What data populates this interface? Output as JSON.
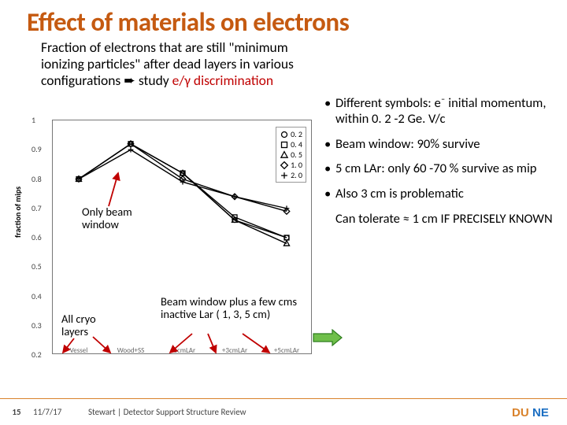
{
  "title_color": "#c55a11",
  "accent_color": "#c00000",
  "title": "Effect of materials on electrons",
  "subtitle_parts": {
    "a": "Fraction of electrons that are still \"minimum ionizing particles\" after dead layers in various configurations ",
    "arrow": "➨",
    "b": "  study ",
    "c": " e/γ discrimination"
  },
  "chart": {
    "ylabel": "fraction of mips",
    "ylim": [
      0.2,
      1.0
    ],
    "yticks": [
      0.2,
      0.3,
      0.4,
      0.5,
      0.6,
      0.7,
      0.8,
      0.9,
      1.0
    ],
    "ytick_labels": [
      "0.2",
      "0.3",
      "0.4",
      "0.5",
      "0.6",
      "0.7",
      "0.8",
      "0.9",
      "1"
    ],
    "categories": [
      "Vessel",
      "Wood+SS",
      "+1cmLAr",
      "+3cmLAr",
      "+5cmLAr"
    ],
    "legend_vals": [
      "0. 2",
      "0. 4",
      "0. 5",
      "1. 0",
      "2. 0"
    ],
    "series": [
      {
        "marker": "circle",
        "y": [
          0.8,
          0.92,
          0.82,
          0.66,
          0.6
        ]
      },
      {
        "marker": "square",
        "y": [
          0.8,
          0.92,
          0.82,
          0.67,
          0.6
        ]
      },
      {
        "marker": "triangle",
        "y": [
          0.8,
          0.92,
          0.82,
          0.66,
          0.58
        ]
      },
      {
        "marker": "diamond",
        "y": [
          0.8,
          0.92,
          0.8,
          0.74,
          0.69
        ]
      },
      {
        "marker": "plus",
        "y": [
          0.8,
          0.9,
          0.79,
          0.74,
          0.7
        ]
      }
    ],
    "series_color": "#000000",
    "line_width": 1.4,
    "marker_size": 6,
    "border_color": "#888888"
  },
  "annotations": {
    "only_beam": "Only beam window",
    "all_cryo": "All cryo layers",
    "beam_plus": "Beam window plus a few  cms inactive Lar ( 1, 3, 5 cm)"
  },
  "bullets": [
    {
      "text": "Different symbols: e⁻ initial momentum, within 0. 2 -2 Ge. V/c",
      "dot": true
    },
    {
      "text": "Beam window: 90% survive",
      "dot": true
    },
    {
      "text": "5 cm LAr: only 60 -70 % survive as mip",
      "dot": true
    },
    {
      "text": "Also 3 cm is problematic",
      "dot": true
    },
    {
      "text": "Can tolerate ≈ 1 cm IF PRECISELY KNOWN",
      "dot": false
    }
  ],
  "footer": {
    "page": "15",
    "date": "11/7/17",
    "title": "Stewart  |  Detector Support Structure Review",
    "logo_text": "DUNE"
  },
  "arrow_red_color": "#c00000",
  "arrow_green_fill": "#6fbf4a",
  "arrow_green_stroke": "#2e7d1e"
}
